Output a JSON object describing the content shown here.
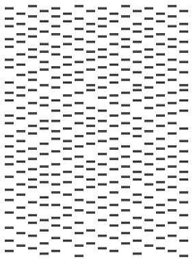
{
  "chart_data": {
    "type": "scatter",
    "marker": "band",
    "color": "#2a2a2a",
    "xlim": [
      0.5,
      16.5
    ],
    "ylim": [
      0,
      100
    ],
    "xticks": [],
    "yticks": [],
    "tick_labels": false,
    "grid": false,
    "lanes": [
      [
        2,
        6,
        9,
        14,
        17,
        22,
        25,
        31,
        35,
        38,
        44,
        47,
        52,
        56,
        60,
        63,
        68,
        73,
        77,
        82,
        88,
        93,
        97
      ],
      [
        4,
        8,
        12,
        15,
        20,
        24,
        28,
        33,
        36,
        41,
        45,
        50,
        54,
        58,
        62,
        66,
        71,
        75,
        80,
        84,
        90,
        95
      ],
      [
        1,
        5,
        10,
        13,
        18,
        21,
        27,
        30,
        34,
        39,
        43,
        48,
        51,
        57,
        61,
        65,
        69,
        72,
        78,
        83,
        86,
        91,
        96
      ],
      [
        3,
        7,
        11,
        16,
        19,
        23,
        26,
        32,
        37,
        40,
        46,
        49,
        55,
        59,
        64,
        67,
        70,
        76,
        79,
        85,
        89,
        94,
        98
      ],
      [
        2,
        5,
        9,
        12,
        17,
        20,
        25,
        29,
        33,
        38,
        42,
        46,
        50,
        53,
        58,
        63,
        67,
        71,
        74,
        79,
        84,
        87,
        92,
        97
      ],
      [
        4,
        7,
        13,
        16,
        21,
        24,
        28,
        31,
        36,
        40,
        44,
        49,
        54,
        57,
        61,
        66,
        70,
        75,
        80,
        83,
        88,
        93
      ],
      [
        1,
        6,
        10,
        14,
        18,
        23,
        27,
        30,
        35,
        39,
        43,
        47,
        52,
        56,
        60,
        64,
        68,
        73,
        77,
        81,
        86,
        90,
        95,
        99
      ],
      [
        3,
        8,
        11,
        15,
        19,
        22,
        26,
        32,
        34,
        41,
        45,
        48,
        51,
        55,
        62,
        65,
        69,
        72,
        78,
        82,
        89,
        94
      ],
      [
        2,
        6,
        9,
        13,
        18,
        21,
        25,
        29,
        33,
        37,
        42,
        46,
        50,
        54,
        59,
        63,
        67,
        71,
        76,
        80,
        85,
        91,
        96
      ],
      [
        4,
        7,
        12,
        16,
        20,
        24,
        28,
        31,
        36,
        39,
        44,
        48,
        53,
        57,
        61,
        65,
        70,
        74,
        79,
        83,
        87,
        92,
        97
      ],
      [
        1,
        5,
        10,
        14,
        17,
        22,
        26,
        30,
        35,
        40,
        43,
        47,
        51,
        56,
        60,
        64,
        68,
        72,
        77,
        81,
        86,
        90,
        94
      ],
      [
        3,
        8,
        11,
        15,
        19,
        23,
        27,
        32,
        34,
        38,
        45,
        49,
        52,
        58,
        62,
        66,
        69,
        75,
        78,
        84,
        88,
        93,
        98
      ],
      [
        2,
        6,
        10,
        13,
        18,
        21,
        25,
        29,
        33,
        37,
        41,
        46,
        50,
        55,
        59,
        63,
        67,
        71,
        76,
        80,
        85,
        89,
        95
      ],
      [
        4,
        7,
        12,
        16,
        20,
        24,
        28,
        31,
        36,
        40,
        44,
        48,
        53,
        57,
        61,
        65,
        70,
        73,
        79,
        82,
        87,
        92,
        96
      ],
      [
        1,
        5,
        9,
        14,
        17,
        22,
        26,
        30,
        35,
        39,
        43,
        47,
        51,
        56,
        60,
        64,
        68,
        72,
        77,
        81,
        86,
        91,
        97
      ],
      [
        3,
        8,
        11,
        15,
        19,
        23,
        27,
        32,
        34,
        38,
        42,
        49,
        54,
        58,
        62,
        66,
        69,
        74,
        78,
        83,
        88,
        93,
        99
      ]
    ]
  }
}
